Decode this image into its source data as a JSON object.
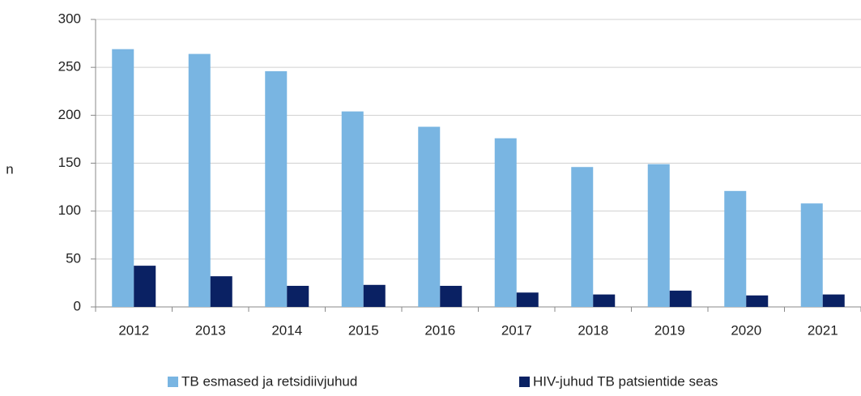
{
  "chart_data": {
    "type": "bar",
    "y_label": "n",
    "categories": [
      "2012",
      "2013",
      "2014",
      "2015",
      "2016",
      "2017",
      "2018",
      "2019",
      "2020",
      "2021"
    ],
    "series": [
      {
        "name": "TB esmased ja retsidiivjuhud",
        "color": "#79b5e2",
        "values": [
          269,
          264,
          246,
          204,
          188,
          176,
          146,
          149,
          121,
          108
        ]
      },
      {
        "name": "HIV-juhud TB patsientide seas",
        "color": "#0a2163",
        "values": [
          43,
          32,
          22,
          23,
          22,
          15,
          13,
          17,
          12,
          13
        ]
      }
    ],
    "ylim": [
      0,
      300
    ],
    "yticks": [
      0,
      50,
      100,
      150,
      200,
      250,
      300
    ],
    "grid": true,
    "legend": "bottom"
  }
}
